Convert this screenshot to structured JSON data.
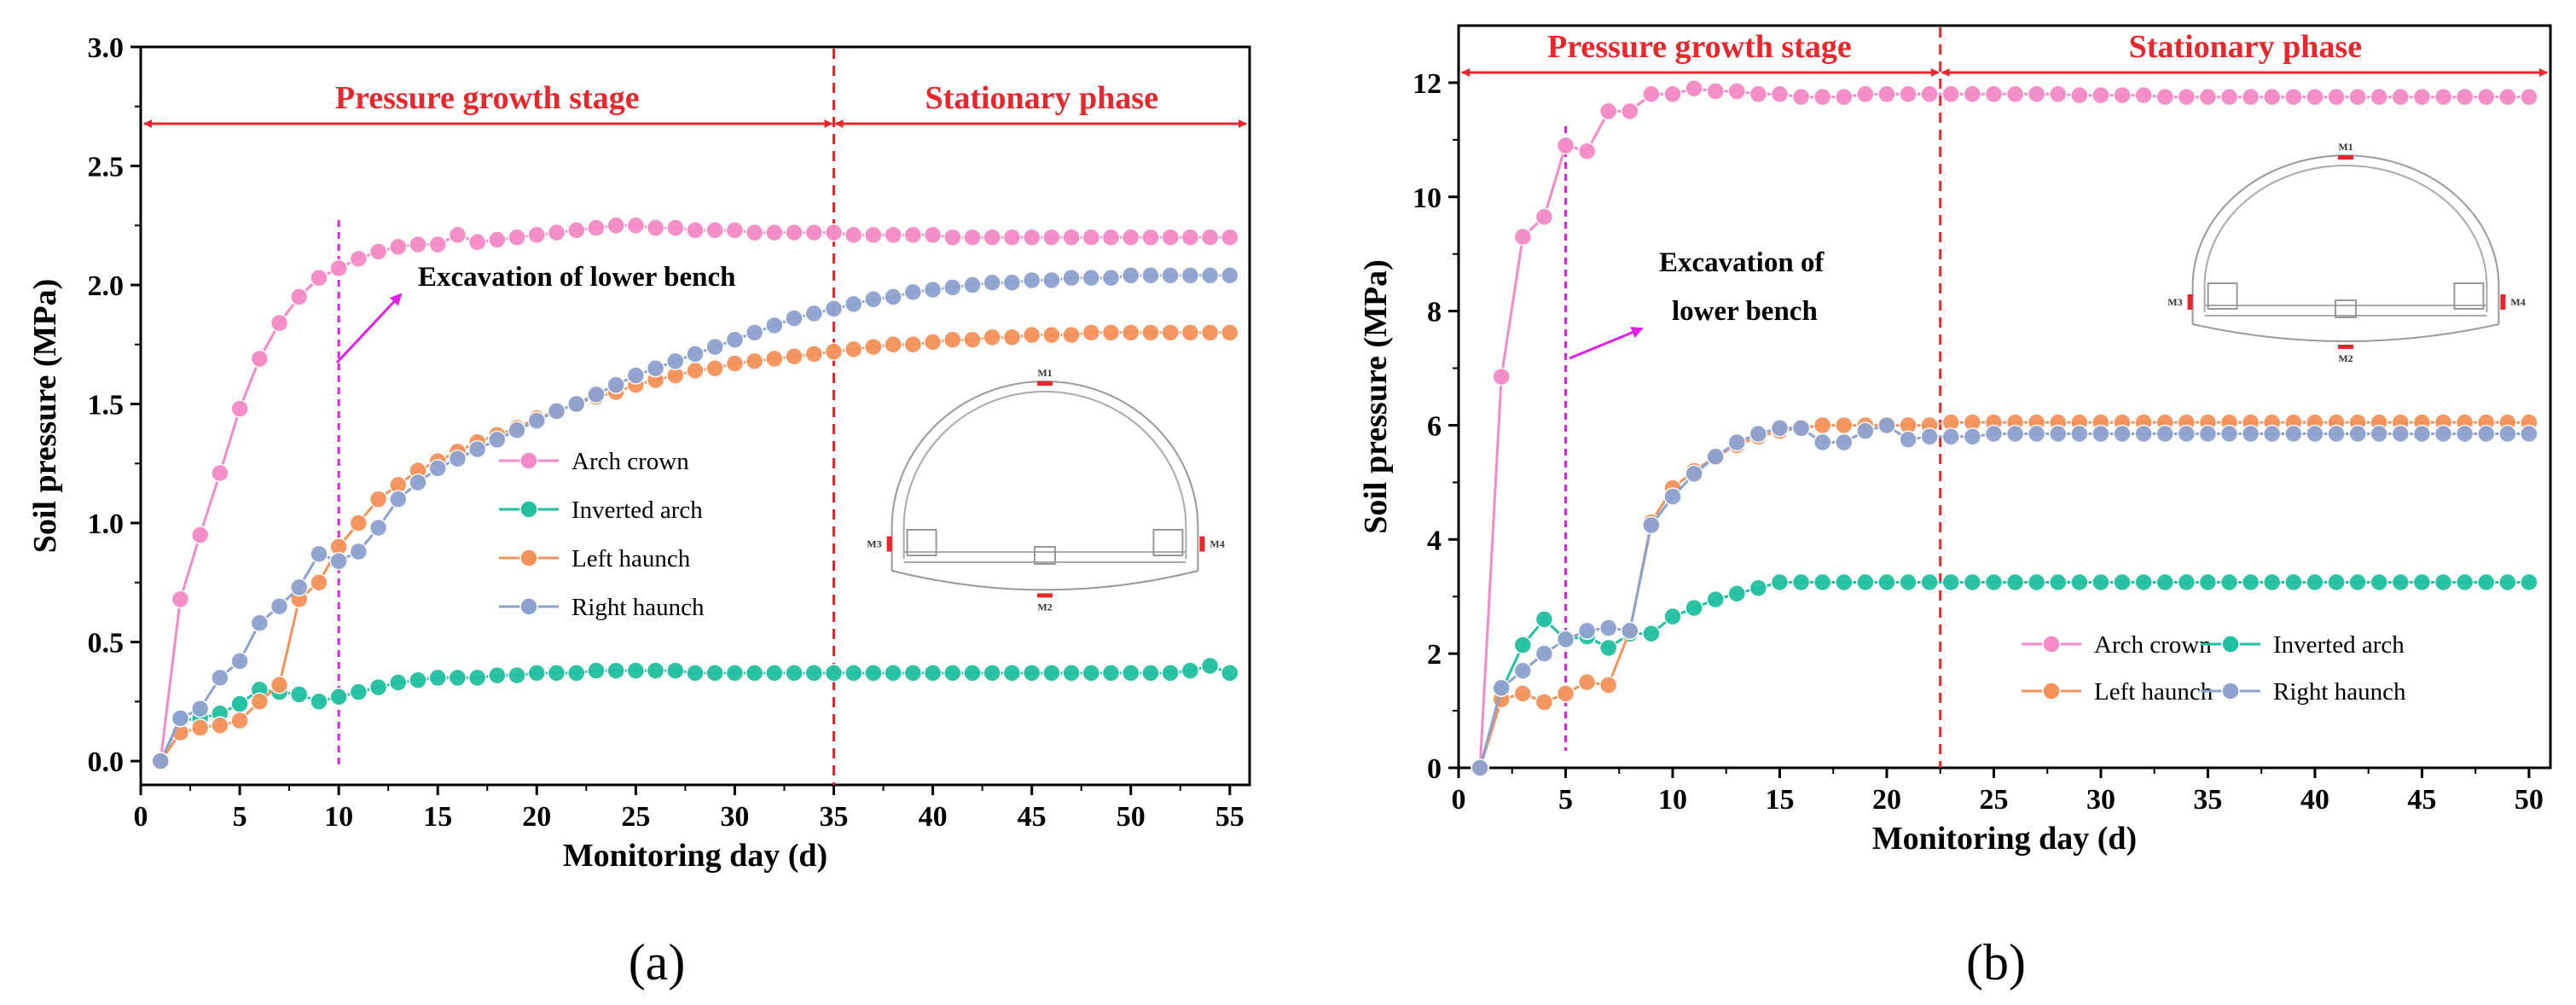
{
  "colors": {
    "Arch crown": "#f48ac6",
    "Inverted arch": "#20c0a0",
    "Left haunch": "#f4925a",
    "Right haunch": "#8ea2cf",
    "stage": "#e8262b",
    "excavation": "#e020e8"
  },
  "chart_data": [
    {
      "panel": "(a)",
      "type": "line",
      "xlabel": "Monitoring day (d)",
      "ylabel": "Soil pressure (MPa)",
      "xlim": [
        0,
        56
      ],
      "ylim": [
        -0.1,
        3.0
      ],
      "xticks": [
        0,
        5,
        10,
        15,
        20,
        25,
        30,
        35,
        40,
        45,
        50,
        55
      ],
      "yticks": [
        "0.0",
        "0.5",
        "1.0",
        "1.5",
        "2.0",
        "2.5",
        "3.0"
      ],
      "stages": {
        "growth": "Pressure growth stage",
        "stationary": "Stationary phase",
        "boundary_day": 35
      },
      "excavation": {
        "day": 10,
        "text": [
          "Excavation of lower bench"
        ]
      },
      "series": [
        {
          "name": "Arch crown",
          "x": [
            1,
            2,
            3,
            4,
            5,
            6,
            7,
            8,
            9,
            10,
            11,
            12,
            13,
            14,
            15,
            16,
            17,
            18,
            19,
            20,
            21,
            22,
            23,
            24,
            25,
            26,
            27,
            28,
            29,
            30,
            31,
            32,
            33,
            34,
            35,
            36,
            37,
            38,
            39,
            40,
            41,
            42,
            43,
            44,
            45,
            46,
            47,
            48,
            49,
            50,
            51,
            52,
            53,
            54,
            55
          ],
          "values": [
            0,
            0.68,
            0.95,
            1.21,
            1.48,
            1.69,
            1.84,
            1.95,
            2.03,
            2.07,
            2.11,
            2.14,
            2.16,
            2.17,
            2.17,
            2.21,
            2.18,
            2.19,
            2.2,
            2.21,
            2.22,
            2.23,
            2.24,
            2.25,
            2.25,
            2.24,
            2.24,
            2.23,
            2.23,
            2.23,
            2.22,
            2.22,
            2.22,
            2.22,
            2.22,
            2.21,
            2.21,
            2.21,
            2.21,
            2.21,
            2.2,
            2.2,
            2.2,
            2.2,
            2.2,
            2.2,
            2.2,
            2.2,
            2.2,
            2.2,
            2.2,
            2.2,
            2.2,
            2.2,
            2.2
          ]
        },
        {
          "name": "Inverted arch",
          "x": [
            1,
            2,
            3,
            4,
            5,
            6,
            7,
            8,
            9,
            10,
            11,
            12,
            13,
            14,
            15,
            16,
            17,
            18,
            19,
            20,
            21,
            22,
            23,
            24,
            25,
            26,
            27,
            28,
            29,
            30,
            31,
            32,
            33,
            34,
            35,
            36,
            37,
            38,
            39,
            40,
            41,
            42,
            43,
            44,
            45,
            46,
            47,
            48,
            49,
            50,
            51,
            52,
            53,
            54,
            55
          ],
          "values": [
            0,
            0.17,
            0.18,
            0.2,
            0.24,
            0.3,
            0.29,
            0.28,
            0.25,
            0.27,
            0.29,
            0.31,
            0.33,
            0.34,
            0.35,
            0.35,
            0.35,
            0.36,
            0.36,
            0.37,
            0.37,
            0.37,
            0.38,
            0.38,
            0.38,
            0.38,
            0.38,
            0.37,
            0.37,
            0.37,
            0.37,
            0.37,
            0.37,
            0.37,
            0.37,
            0.37,
            0.37,
            0.37,
            0.37,
            0.37,
            0.37,
            0.37,
            0.37,
            0.37,
            0.37,
            0.37,
            0.37,
            0.37,
            0.37,
            0.37,
            0.37,
            0.37,
            0.38,
            0.4,
            0.37
          ]
        },
        {
          "name": "Left haunch",
          "x": [
            1,
            2,
            3,
            4,
            5,
            6,
            7,
            8,
            9,
            10,
            11,
            12,
            13,
            14,
            15,
            16,
            17,
            18,
            19,
            20,
            21,
            22,
            23,
            24,
            25,
            26,
            27,
            28,
            29,
            30,
            31,
            32,
            33,
            34,
            35,
            36,
            37,
            38,
            39,
            40,
            41,
            42,
            43,
            44,
            45,
            46,
            47,
            48,
            49,
            50,
            51,
            52,
            53,
            54,
            55
          ],
          "values": [
            0,
            0.12,
            0.14,
            0.15,
            0.17,
            0.25,
            0.32,
            0.68,
            0.75,
            0.9,
            1.0,
            1.1,
            1.16,
            1.22,
            1.26,
            1.3,
            1.34,
            1.37,
            1.4,
            1.44,
            1.47,
            1.5,
            1.53,
            1.55,
            1.58,
            1.6,
            1.62,
            1.64,
            1.65,
            1.67,
            1.68,
            1.69,
            1.7,
            1.71,
            1.72,
            1.73,
            1.74,
            1.75,
            1.75,
            1.76,
            1.77,
            1.77,
            1.78,
            1.78,
            1.79,
            1.79,
            1.79,
            1.8,
            1.8,
            1.8,
            1.8,
            1.8,
            1.8,
            1.8,
            1.8
          ]
        },
        {
          "name": "Right haunch",
          "x": [
            1,
            2,
            3,
            4,
            5,
            6,
            7,
            8,
            9,
            10,
            11,
            12,
            13,
            14,
            15,
            16,
            17,
            18,
            19,
            20,
            21,
            22,
            23,
            24,
            25,
            26,
            27,
            28,
            29,
            30,
            31,
            32,
            33,
            34,
            35,
            36,
            37,
            38,
            39,
            40,
            41,
            42,
            43,
            44,
            45,
            46,
            47,
            48,
            49,
            50,
            51,
            52,
            53,
            54,
            55
          ],
          "values": [
            0,
            0.18,
            0.22,
            0.35,
            0.42,
            0.58,
            0.65,
            0.73,
            0.87,
            0.84,
            0.88,
            0.98,
            1.1,
            1.17,
            1.23,
            1.27,
            1.31,
            1.35,
            1.39,
            1.43,
            1.47,
            1.5,
            1.54,
            1.58,
            1.62,
            1.65,
            1.68,
            1.71,
            1.74,
            1.77,
            1.8,
            1.83,
            1.86,
            1.88,
            1.9,
            1.92,
            1.94,
            1.95,
            1.97,
            1.98,
            1.99,
            2.0,
            2.01,
            2.01,
            2.02,
            2.02,
            2.03,
            2.03,
            2.03,
            2.04,
            2.04,
            2.04,
            2.04,
            2.04,
            2.04
          ]
        }
      ]
    },
    {
      "panel": "(b)",
      "type": "line",
      "xlabel": "Monitoring day (d)",
      "ylabel": "Soil pressure (MPa)",
      "xlim": [
        0,
        51
      ],
      "ylim": [
        0,
        13
      ],
      "xticks": [
        0,
        5,
        10,
        15,
        20,
        25,
        30,
        35,
        40,
        45,
        50
      ],
      "yticks": [
        "0",
        "2",
        "4",
        "6",
        "8",
        "10",
        "12"
      ],
      "stages": {
        "growth": "Pressure growth stage",
        "stationary": "Stationary phase",
        "boundary_day": 22.5
      },
      "excavation": {
        "day": 5,
        "text": [
          "Excavation of",
          "lower bench"
        ]
      },
      "series": [
        {
          "name": "Arch crown",
          "x": [
            1,
            2,
            3,
            4,
            5,
            6,
            7,
            8,
            9,
            10,
            11,
            12,
            13,
            14,
            15,
            16,
            17,
            18,
            19,
            20,
            21,
            22,
            23,
            24,
            25,
            26,
            27,
            28,
            29,
            30,
            31,
            32,
            33,
            34,
            35,
            36,
            37,
            38,
            39,
            40,
            41,
            42,
            43,
            44,
            45,
            46,
            47,
            48,
            49,
            50
          ],
          "values": [
            0,
            6.85,
            9.3,
            9.65,
            10.9,
            10.8,
            11.5,
            11.5,
            11.8,
            11.8,
            11.9,
            11.85,
            11.85,
            11.8,
            11.8,
            11.75,
            11.75,
            11.75,
            11.8,
            11.8,
            11.8,
            11.8,
            11.8,
            11.8,
            11.8,
            11.8,
            11.8,
            11.8,
            11.78,
            11.78,
            11.78,
            11.78,
            11.75,
            11.75,
            11.75,
            11.75,
            11.75,
            11.75,
            11.75,
            11.75,
            11.75,
            11.75,
            11.75,
            11.75,
            11.75,
            11.75,
            11.75,
            11.75,
            11.75,
            11.75
          ]
        },
        {
          "name": "Inverted arch",
          "x": [
            1,
            2,
            3,
            4,
            5,
            6,
            7,
            8,
            9,
            10,
            11,
            12,
            13,
            14,
            15,
            16,
            17,
            18,
            19,
            20,
            21,
            22,
            23,
            24,
            25,
            26,
            27,
            28,
            29,
            30,
            31,
            32,
            33,
            34,
            35,
            36,
            37,
            38,
            39,
            40,
            41,
            42,
            43,
            44,
            45,
            46,
            47,
            48,
            49,
            50
          ],
          "values": [
            0,
            1.35,
            2.15,
            2.6,
            2.25,
            2.3,
            2.1,
            2.35,
            2.35,
            2.65,
            2.8,
            2.95,
            3.05,
            3.15,
            3.25,
            3.25,
            3.25,
            3.25,
            3.25,
            3.25,
            3.25,
            3.25,
            3.25,
            3.25,
            3.25,
            3.25,
            3.25,
            3.25,
            3.25,
            3.25,
            3.25,
            3.25,
            3.25,
            3.25,
            3.25,
            3.25,
            3.25,
            3.25,
            3.25,
            3.25,
            3.25,
            3.25,
            3.25,
            3.25,
            3.25,
            3.25,
            3.25,
            3.25,
            3.25,
            3.25
          ]
        },
        {
          "name": "Left haunch",
          "x": [
            1,
            2,
            3,
            4,
            5,
            6,
            7,
            8,
            9,
            10,
            11,
            12,
            13,
            14,
            15,
            16,
            17,
            18,
            19,
            20,
            21,
            22,
            23,
            24,
            25,
            26,
            27,
            28,
            29,
            30,
            31,
            32,
            33,
            34,
            35,
            36,
            37,
            38,
            39,
            40,
            41,
            42,
            43,
            44,
            45,
            46,
            47,
            48,
            49,
            50
          ],
          "values": [
            0,
            1.2,
            1.3,
            1.15,
            1.3,
            1.5,
            1.45,
            2.4,
            4.3,
            4.9,
            5.2,
            5.45,
            5.65,
            5.8,
            5.9,
            5.95,
            6.0,
            6.0,
            6.0,
            6.0,
            6.0,
            6.0,
            6.05,
            6.05,
            6.05,
            6.05,
            6.05,
            6.05,
            6.05,
            6.05,
            6.05,
            6.05,
            6.05,
            6.05,
            6.05,
            6.05,
            6.05,
            6.05,
            6.05,
            6.05,
            6.05,
            6.05,
            6.05,
            6.05,
            6.05,
            6.05,
            6.05,
            6.05,
            6.05,
            6.05
          ]
        },
        {
          "name": "Right haunch",
          "x": [
            1,
            2,
            3,
            4,
            5,
            6,
            7,
            8,
            9,
            10,
            11,
            12,
            13,
            14,
            15,
            16,
            17,
            18,
            19,
            20,
            21,
            22,
            23,
            24,
            25,
            26,
            27,
            28,
            29,
            30,
            31,
            32,
            33,
            34,
            35,
            36,
            37,
            38,
            39,
            40,
            41,
            42,
            43,
            44,
            45,
            46,
            47,
            48,
            49,
            50
          ],
          "values": [
            0,
            1.4,
            1.7,
            2.0,
            2.25,
            2.4,
            2.45,
            2.4,
            4.25,
            4.75,
            5.15,
            5.45,
            5.7,
            5.85,
            5.95,
            5.95,
            5.7,
            5.7,
            5.9,
            6.0,
            5.75,
            5.8,
            5.8,
            5.8,
            5.85,
            5.85,
            5.85,
            5.85,
            5.85,
            5.85,
            5.85,
            5.85,
            5.85,
            5.85,
            5.85,
            5.85,
            5.85,
            5.85,
            5.85,
            5.85,
            5.85,
            5.85,
            5.85,
            5.85,
            5.85,
            5.85,
            5.85,
            5.85,
            5.85,
            5.85
          ]
        }
      ]
    }
  ],
  "tunnel_markers": [
    "M1",
    "M2",
    "M3",
    "M4"
  ]
}
